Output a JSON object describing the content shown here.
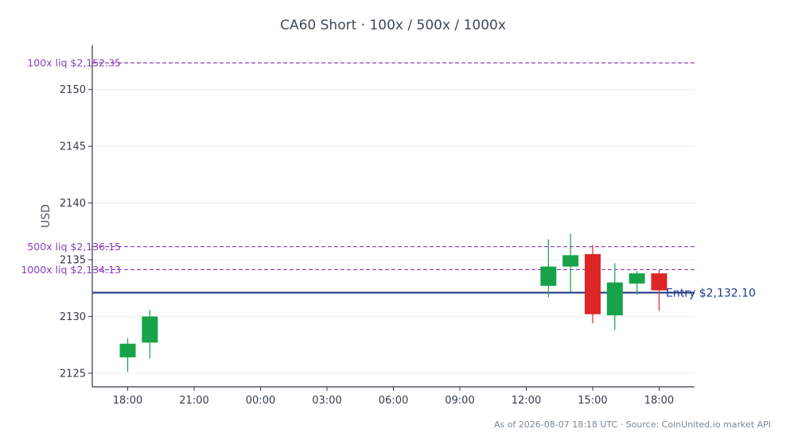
{
  "chart_data": {
    "type": "candlestick",
    "title": "CA60 Short · 100x / 500x / 1000x",
    "ylabel": "USD",
    "xlabel": "",
    "ylim": [
      2123.8,
      2153.9
    ],
    "y_ticks": [
      2125,
      2130,
      2135,
      2140,
      2145,
      2150
    ],
    "x_range_hours": [
      16.4,
      43.6
    ],
    "x_ticks": [
      {
        "hour": 18,
        "label": "18:00"
      },
      {
        "hour": 21,
        "label": "21:00"
      },
      {
        "hour": 24,
        "label": "00:00"
      },
      {
        "hour": 27,
        "label": "03:00"
      },
      {
        "hour": 30,
        "label": "06:00"
      },
      {
        "hour": 33,
        "label": "09:00"
      },
      {
        "hour": 36,
        "label": "12:00"
      },
      {
        "hour": 39,
        "label": "15:00"
      },
      {
        "hour": 42,
        "label": "18:00"
      }
    ],
    "grid": true,
    "candles": [
      {
        "time": "18:00",
        "hour": 18,
        "open": 2126.4,
        "high": 2128.1,
        "low": 2125.1,
        "close": 2127.6
      },
      {
        "time": "19:00",
        "hour": 19,
        "open": 2127.7,
        "high": 2130.6,
        "low": 2126.3,
        "close": 2130.0
      },
      {
        "time": "13:00",
        "hour": 37,
        "open": 2132.7,
        "high": 2136.8,
        "low": 2131.7,
        "close": 2134.4
      },
      {
        "time": "14:00",
        "hour": 38,
        "open": 2134.4,
        "high": 2137.3,
        "low": 2132.1,
        "close": 2135.4
      },
      {
        "time": "15:00",
        "hour": 39,
        "open": 2135.5,
        "high": 2136.3,
        "low": 2129.4,
        "close": 2130.2
      },
      {
        "time": "16:00",
        "hour": 40,
        "open": 2130.1,
        "high": 2134.7,
        "low": 2128.8,
        "close": 2133.0
      },
      {
        "time": "17:00",
        "hour": 41,
        "open": 2132.9,
        "high": 2134.0,
        "low": 2131.9,
        "close": 2133.8
      },
      {
        "time": "18:00",
        "hour": 42,
        "open": 2133.8,
        "high": 2134.1,
        "low": 2130.5,
        "close": 2132.3
      }
    ],
    "reference_lines": [
      {
        "name": "100x liq",
        "label": "100x liq $2,152.35",
        "value": 2152.35,
        "color": "#8a3fbf",
        "style": "dashed"
      },
      {
        "name": "500x liq",
        "label": "500x liq $2,136.15",
        "value": 2136.15,
        "color": "#8a3fbf",
        "style": "dashed"
      },
      {
        "name": "1000x liq",
        "label": "1000x liq $2,134.13",
        "value": 2134.13,
        "color": "#8a3fbf",
        "style": "dashed"
      },
      {
        "name": "Entry",
        "label": "Entry $2,132.10",
        "value": 2132.1,
        "color": "#1f3a8a",
        "style": "solid"
      }
    ],
    "colors": {
      "up": "#16a34a",
      "down": "#dc2626",
      "grid": "#ececec",
      "axis": "#2f3a44"
    }
  },
  "footer": "As of 2026-08-07 18:18 UTC · Source: CoinUnited.io market API"
}
